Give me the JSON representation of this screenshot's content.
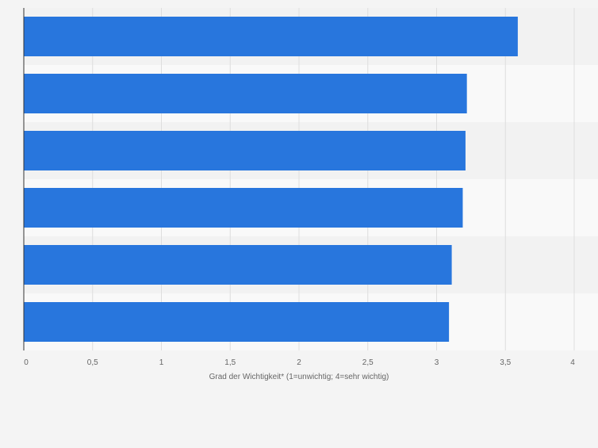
{
  "chart_data": {
    "type": "bar",
    "orientation": "horizontal",
    "categories": [
      "",
      "",
      "",
      "",
      "",
      ""
    ],
    "values": [
      3.59,
      3.22,
      3.21,
      3.19,
      3.11,
      3.09
    ],
    "title": "",
    "xlabel": "Grad der Wichtigkeit* (1=unwichtig; 4=sehr wichtig)",
    "ylabel": "",
    "xlim": [
      0,
      4
    ],
    "xticks": [
      "0",
      "0,5",
      "1",
      "1,5",
      "2",
      "2,5",
      "3",
      "3,5",
      "4"
    ],
    "grid": true,
    "legend": "none",
    "colors": {
      "bar": "#2876dd",
      "band_dark": "#f2f2f2",
      "band_light": "#f9f9f9",
      "grid": "#dedede",
      "axis": "#333333",
      "tick_text": "#666666"
    }
  }
}
